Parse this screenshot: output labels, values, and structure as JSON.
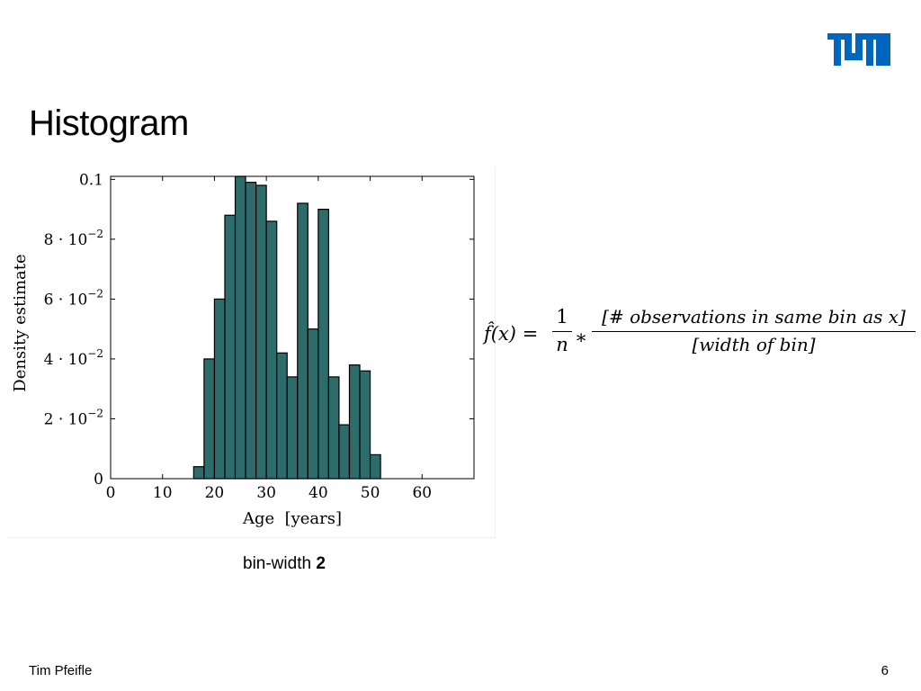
{
  "brand_color": "#0065bd",
  "logo": {
    "text": "TUM",
    "icon": "tum-logo-icon"
  },
  "title": "Histogram",
  "chart_data": {
    "type": "bar",
    "subtype": "histogram",
    "bar_color": "#2e6b6b",
    "bin_width": 2,
    "bins": [
      {
        "x0": 16,
        "x1": 18,
        "y": 0.004
      },
      {
        "x0": 18,
        "x1": 20,
        "y": 0.04
      },
      {
        "x0": 20,
        "x1": 22,
        "y": 0.06
      },
      {
        "x0": 22,
        "x1": 24,
        "y": 0.088
      },
      {
        "x0": 24,
        "x1": 26,
        "y": 0.101
      },
      {
        "x0": 26,
        "x1": 28,
        "y": 0.099
      },
      {
        "x0": 28,
        "x1": 30,
        "y": 0.098
      },
      {
        "x0": 30,
        "x1": 32,
        "y": 0.086
      },
      {
        "x0": 32,
        "x1": 34,
        "y": 0.042
      },
      {
        "x0": 34,
        "x1": 36,
        "y": 0.034
      },
      {
        "x0": 36,
        "x1": 38,
        "y": 0.092
      },
      {
        "x0": 38,
        "x1": 40,
        "y": 0.05
      },
      {
        "x0": 40,
        "x1": 42,
        "y": 0.09
      },
      {
        "x0": 42,
        "x1": 44,
        "y": 0.034
      },
      {
        "x0": 44,
        "x1": 46,
        "y": 0.018
      },
      {
        "x0": 46,
        "x1": 48,
        "y": 0.038
      },
      {
        "x0": 48,
        "x1": 50,
        "y": 0.036
      },
      {
        "x0": 50,
        "x1": 52,
        "y": 0.008
      }
    ],
    "xlim": [
      0,
      70
    ],
    "ylim": [
      0,
      0.101
    ],
    "xticks": [
      0,
      10,
      20,
      30,
      40,
      50,
      60
    ],
    "xtick_labels": [
      "0",
      "10",
      "20",
      "30",
      "40",
      "50",
      "60"
    ],
    "yticks": [
      0,
      0.02,
      0.04,
      0.06,
      0.08,
      0.1
    ],
    "ytick_labels": [
      {
        "mant": "0",
        "exp": ""
      },
      {
        "mant": "2 · 10",
        "exp": "−2"
      },
      {
        "mant": "4 · 10",
        "exp": "−2"
      },
      {
        "mant": "6 · 10",
        "exp": "−2"
      },
      {
        "mant": "8 · 10",
        "exp": "−2"
      },
      {
        "mant": "0.1",
        "exp": ""
      }
    ],
    "xlabel": "Age  [years]",
    "ylabel": "Density estimate",
    "grid": "y-ticks only"
  },
  "formula": {
    "lhs": "f̂(x)",
    "equals": "=",
    "frac1_num": "1",
    "frac1_den": "n",
    "times": "∗",
    "frac2_num": "[# observations in same bin as x]",
    "frac2_den": "[width of bin]"
  },
  "caption": {
    "prefix": "bin-width ",
    "value": "2"
  },
  "footer": {
    "author": "Tim Pfeifle",
    "page": "6"
  }
}
